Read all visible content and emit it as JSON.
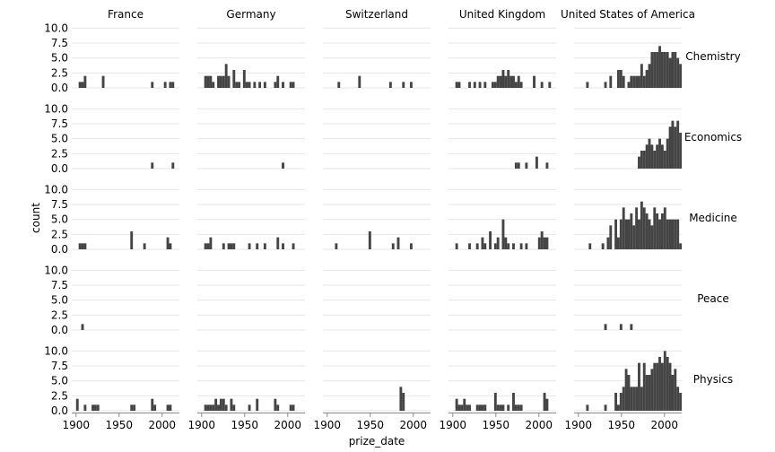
{
  "chart_data": {
    "type": "bar",
    "kind": "faceted histogram",
    "xlabel": "prize_date",
    "ylabel": "count",
    "xlim": [
      1895,
      2020
    ],
    "ylim": [
      0,
      10.5
    ],
    "xticks": [
      1900,
      1950,
      2000
    ],
    "yticks": [
      0.0,
      2.5,
      5.0,
      7.5,
      10.0
    ],
    "ytick_labels": [
      "0.0",
      "2.5",
      "5.0",
      "7.5",
      "10.0"
    ],
    "bin_width": 3,
    "bar_color": "#444444",
    "grid": "horizontal",
    "columns": [
      "France",
      "Germany",
      "Switzerland",
      "United Kingdom",
      "United States of America"
    ],
    "rows": [
      "Chemistry",
      "Economics",
      "Medicine",
      "Peace",
      "Physics"
    ],
    "facets": [
      {
        "row": "Chemistry",
        "col": "France",
        "bins": [
          [
            1903,
            1
          ],
          [
            1906,
            1
          ],
          [
            1909,
            2
          ],
          [
            1930,
            2
          ],
          [
            1987,
            1
          ],
          [
            2002,
            1
          ],
          [
            2008,
            1
          ],
          [
            2011,
            1
          ]
        ]
      },
      {
        "row": "Chemistry",
        "col": "Germany",
        "bins": [
          [
            1903,
            2
          ],
          [
            1906,
            2
          ],
          [
            1909,
            2
          ],
          [
            1912,
            1
          ],
          [
            1918,
            2
          ],
          [
            1921,
            2
          ],
          [
            1924,
            2
          ],
          [
            1927,
            4
          ],
          [
            1930,
            2
          ],
          [
            1936,
            3
          ],
          [
            1939,
            1
          ],
          [
            1942,
            1
          ],
          [
            1948,
            3
          ],
          [
            1951,
            1
          ],
          [
            1954,
            1
          ],
          [
            1960,
            1
          ],
          [
            1966,
            1
          ],
          [
            1972,
            1
          ],
          [
            1984,
            1
          ],
          [
            1987,
            2
          ],
          [
            1993,
            1
          ],
          [
            2002,
            1
          ],
          [
            2005,
            1
          ]
        ]
      },
      {
        "row": "Chemistry",
        "col": "Switzerland",
        "bins": [
          [
            1912,
            1
          ],
          [
            1936,
            2
          ],
          [
            1972,
            1
          ],
          [
            1987,
            1
          ],
          [
            1996,
            1
          ]
        ]
      },
      {
        "row": "Chemistry",
        "col": "United Kingdom",
        "bins": [
          [
            1903,
            1
          ],
          [
            1906,
            1
          ],
          [
            1918,
            1
          ],
          [
            1924,
            1
          ],
          [
            1930,
            1
          ],
          [
            1936,
            1
          ],
          [
            1945,
            1
          ],
          [
            1948,
            1
          ],
          [
            1951,
            2
          ],
          [
            1954,
            2
          ],
          [
            1957,
            3
          ],
          [
            1960,
            2
          ],
          [
            1963,
            3
          ],
          [
            1966,
            2
          ],
          [
            1969,
            2
          ],
          [
            1972,
            1
          ],
          [
            1975,
            2
          ],
          [
            1978,
            1
          ],
          [
            1993,
            2
          ],
          [
            2002,
            1
          ],
          [
            2011,
            1
          ]
        ]
      },
      {
        "row": "Chemistry",
        "col": "United States of America",
        "bins": [
          [
            1909,
            1
          ],
          [
            1930,
            1
          ],
          [
            1936,
            2
          ],
          [
            1945,
            3
          ],
          [
            1948,
            3
          ],
          [
            1951,
            2
          ],
          [
            1957,
            1
          ],
          [
            1960,
            2
          ],
          [
            1963,
            2
          ],
          [
            1966,
            2
          ],
          [
            1969,
            2
          ],
          [
            1972,
            4
          ],
          [
            1975,
            2
          ],
          [
            1978,
            3
          ],
          [
            1981,
            4
          ],
          [
            1984,
            6
          ],
          [
            1987,
            6
          ],
          [
            1990,
            6
          ],
          [
            1993,
            7
          ],
          [
            1996,
            6
          ],
          [
            1999,
            6
          ],
          [
            2002,
            6
          ],
          [
            2005,
            5
          ],
          [
            2008,
            6
          ],
          [
            2011,
            6
          ],
          [
            2014,
            5
          ],
          [
            2017,
            4
          ]
        ]
      },
      {
        "row": "Economics",
        "col": "France",
        "bins": [
          [
            1987,
            1
          ],
          [
            2011,
            1
          ]
        ]
      },
      {
        "row": "Economics",
        "col": "Germany",
        "bins": [
          [
            1993,
            1
          ]
        ]
      },
      {
        "row": "Economics",
        "col": "United Kingdom",
        "bins": [
          [
            1972,
            1
          ],
          [
            1975,
            1
          ],
          [
            1984,
            1
          ],
          [
            1996,
            2
          ],
          [
            2008,
            1
          ]
        ]
      },
      {
        "row": "Economics",
        "col": "United States of America",
        "bins": [
          [
            1969,
            2
          ],
          [
            1972,
            3
          ],
          [
            1975,
            3
          ],
          [
            1978,
            4
          ],
          [
            1981,
            5
          ],
          [
            1984,
            4
          ],
          [
            1987,
            3
          ],
          [
            1990,
            4
          ],
          [
            1993,
            5
          ],
          [
            1996,
            4
          ],
          [
            1999,
            3
          ],
          [
            2002,
            5
          ],
          [
            2005,
            7
          ],
          [
            2008,
            8
          ],
          [
            2011,
            7
          ],
          [
            2014,
            8
          ],
          [
            2017,
            6
          ]
        ]
      },
      {
        "row": "Medicine",
        "col": "France",
        "bins": [
          [
            1903,
            1
          ],
          [
            1906,
            1
          ],
          [
            1909,
            1
          ],
          [
            1963,
            3
          ],
          [
            1978,
            1
          ],
          [
            2005,
            2
          ],
          [
            2008,
            1
          ]
        ]
      },
      {
        "row": "Medicine",
        "col": "Germany",
        "bins": [
          [
            1903,
            1
          ],
          [
            1906,
            1
          ],
          [
            1909,
            2
          ],
          [
            1924,
            1
          ],
          [
            1930,
            1
          ],
          [
            1933,
            1
          ],
          [
            1936,
            1
          ],
          [
            1954,
            1
          ],
          [
            1963,
            1
          ],
          [
            1972,
            1
          ],
          [
            1987,
            2
          ],
          [
            1993,
            1
          ],
          [
            2005,
            1
          ]
        ]
      },
      {
        "row": "Medicine",
        "col": "Switzerland",
        "bins": [
          [
            1909,
            1
          ],
          [
            1948,
            3
          ],
          [
            1975,
            1
          ],
          [
            1981,
            2
          ],
          [
            1996,
            1
          ]
        ]
      },
      {
        "row": "Medicine",
        "col": "United Kingdom",
        "bins": [
          [
            1903,
            1
          ],
          [
            1918,
            1
          ],
          [
            1927,
            1
          ],
          [
            1933,
            2
          ],
          [
            1936,
            1
          ],
          [
            1942,
            3
          ],
          [
            1948,
            1
          ],
          [
            1951,
            2
          ],
          [
            1957,
            5
          ],
          [
            1960,
            2
          ],
          [
            1963,
            1
          ],
          [
            1969,
            1
          ],
          [
            1978,
            1
          ],
          [
            1984,
            1
          ],
          [
            1999,
            2
          ],
          [
            2002,
            3
          ],
          [
            2005,
            2
          ],
          [
            2008,
            2
          ]
        ]
      },
      {
        "row": "Medicine",
        "col": "United States of America",
        "bins": [
          [
            1912,
            1
          ],
          [
            1927,
            1
          ],
          [
            1933,
            2
          ],
          [
            1936,
            4
          ],
          [
            1942,
            5
          ],
          [
            1945,
            2
          ],
          [
            1948,
            5
          ],
          [
            1951,
            7
          ],
          [
            1954,
            5
          ],
          [
            1957,
            5
          ],
          [
            1960,
            6
          ],
          [
            1963,
            4
          ],
          [
            1966,
            7
          ],
          [
            1969,
            5
          ],
          [
            1972,
            8
          ],
          [
            1975,
            7
          ],
          [
            1978,
            6
          ],
          [
            1981,
            5
          ],
          [
            1984,
            4
          ],
          [
            1987,
            7
          ],
          [
            1990,
            6
          ],
          [
            1993,
            5
          ],
          [
            1996,
            6
          ],
          [
            1999,
            7
          ],
          [
            2002,
            5
          ],
          [
            2005,
            5
          ],
          [
            2008,
            5
          ],
          [
            2011,
            5
          ],
          [
            2014,
            5
          ],
          [
            2017,
            1
          ]
        ]
      },
      {
        "row": "Peace",
        "col": "France",
        "bins": [
          [
            1906,
            1
          ]
        ]
      },
      {
        "row": "Peace",
        "col": "United States of America",
        "bins": [
          [
            1930,
            1
          ],
          [
            1948,
            1
          ],
          [
            1960,
            1
          ]
        ]
      },
      {
        "row": "Physics",
        "col": "France",
        "bins": [
          [
            1900,
            2
          ],
          [
            1909,
            1
          ],
          [
            1918,
            1
          ],
          [
            1921,
            1
          ],
          [
            1924,
            1
          ],
          [
            1963,
            1
          ],
          [
            1966,
            1
          ],
          [
            1987,
            2
          ],
          [
            1990,
            1
          ],
          [
            2005,
            1
          ],
          [
            2008,
            1
          ]
        ]
      },
      {
        "row": "Physics",
        "col": "Germany",
        "bins": [
          [
            1903,
            1
          ],
          [
            1906,
            1
          ],
          [
            1909,
            1
          ],
          [
            1912,
            1
          ],
          [
            1915,
            2
          ],
          [
            1918,
            1
          ],
          [
            1921,
            2
          ],
          [
            1924,
            2
          ],
          [
            1927,
            1
          ],
          [
            1933,
            2
          ],
          [
            1936,
            1
          ],
          [
            1954,
            1
          ],
          [
            1963,
            2
          ],
          [
            1984,
            2
          ],
          [
            1987,
            1
          ],
          [
            2002,
            1
          ],
          [
            2005,
            1
          ]
        ]
      },
      {
        "row": "Physics",
        "col": "Switzerland",
        "bins": [
          [
            1984,
            4
          ],
          [
            1987,
            3
          ]
        ]
      },
      {
        "row": "Physics",
        "col": "United Kingdom",
        "bins": [
          [
            1903,
            2
          ],
          [
            1906,
            1
          ],
          [
            1909,
            1
          ],
          [
            1912,
            2
          ],
          [
            1915,
            1
          ],
          [
            1918,
            1
          ],
          [
            1927,
            1
          ],
          [
            1930,
            1
          ],
          [
            1933,
            1
          ],
          [
            1936,
            1
          ],
          [
            1948,
            3
          ],
          [
            1951,
            1
          ],
          [
            1954,
            1
          ],
          [
            1957,
            1
          ],
          [
            1963,
            1
          ],
          [
            1969,
            3
          ],
          [
            1972,
            1
          ],
          [
            1975,
            1
          ],
          [
            1978,
            1
          ],
          [
            2005,
            3
          ],
          [
            2008,
            2
          ]
        ]
      },
      {
        "row": "Physics",
        "col": "United States of America",
        "bins": [
          [
            1909,
            1
          ],
          [
            1930,
            1
          ],
          [
            1942,
            3
          ],
          [
            1945,
            1
          ],
          [
            1948,
            3
          ],
          [
            1951,
            4
          ],
          [
            1954,
            7
          ],
          [
            1957,
            6
          ],
          [
            1960,
            4
          ],
          [
            1963,
            4
          ],
          [
            1966,
            4
          ],
          [
            1969,
            8
          ],
          [
            1972,
            4
          ],
          [
            1975,
            8
          ],
          [
            1978,
            6
          ],
          [
            1981,
            6
          ],
          [
            1984,
            7
          ],
          [
            1987,
            8
          ],
          [
            1990,
            8
          ],
          [
            1993,
            9
          ],
          [
            1996,
            8
          ],
          [
            1999,
            10
          ],
          [
            2002,
            9
          ],
          [
            2005,
            8
          ],
          [
            2008,
            6
          ],
          [
            2011,
            7
          ],
          [
            2014,
            4
          ],
          [
            2017,
            3
          ]
        ]
      }
    ]
  }
}
